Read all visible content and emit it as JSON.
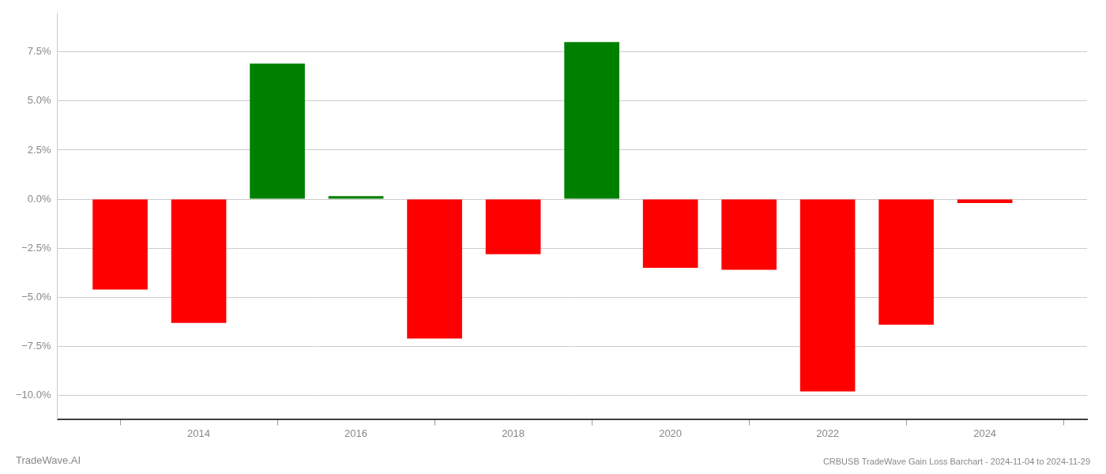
{
  "chart_data": {
    "type": "bar",
    "title": "CRBUSB TradeWave Gain Loss Barchart - 2024-11-04 to 2024-11-29",
    "annotations": [
      "TradeWave.AI"
    ],
    "x": [
      2013,
      2014,
      2015,
      2016,
      2017,
      2018,
      2019,
      2020,
      2021,
      2022,
      2023,
      2024
    ],
    "values": [
      -4.6,
      -6.3,
      6.9,
      0.15,
      -7.1,
      -2.8,
      8.0,
      -3.5,
      -3.6,
      -9.8,
      -6.4,
      -0.2
    ],
    "colors": [
      "#ff0000",
      "#ff0000",
      "#008000",
      "#008000",
      "#ff0000",
      "#ff0000",
      "#008000",
      "#ff0000",
      "#ff0000",
      "#ff0000",
      "#ff0000",
      "#ff0000"
    ],
    "xlim": [
      2012.2,
      2025.3
    ],
    "xticks": [
      2014,
      2016,
      2018,
      2020,
      2022,
      2024
    ],
    "ylim": [
      -11.2,
      9.5
    ],
    "yticks": [
      {
        "value": -10.0,
        "label": "−10.0%"
      },
      {
        "value": -7.5,
        "label": "−7.5%"
      },
      {
        "value": -5.0,
        "label": "−5.0%"
      },
      {
        "value": -2.5,
        "label": "−2.5%"
      },
      {
        "value": 0.0,
        "label": "0.0%"
      },
      {
        "value": 2.5,
        "label": "2.5%"
      },
      {
        "value": 5.0,
        "label": "5.0%"
      },
      {
        "value": 7.5,
        "label": "7.5%"
      }
    ],
    "grid": true
  }
}
